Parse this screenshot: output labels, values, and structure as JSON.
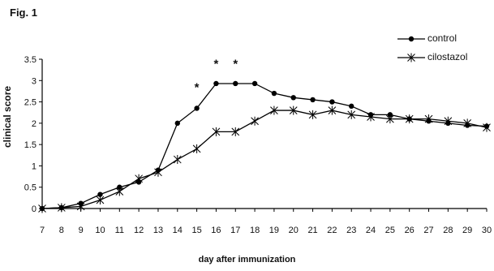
{
  "figure": {
    "label": "Fig. 1"
  },
  "chart_data": {
    "type": "line",
    "title": "",
    "xlabel": "day after immunization",
    "ylabel": "clinical score",
    "x": [
      7,
      8,
      9,
      10,
      11,
      12,
      13,
      14,
      15,
      16,
      17,
      18,
      19,
      20,
      21,
      22,
      23,
      24,
      25,
      26,
      27,
      28,
      29,
      30
    ],
    "ylim": [
      0,
      3.5
    ],
    "yticks": [
      0,
      0.5,
      1,
      1.5,
      2,
      2.5,
      3,
      3.5
    ],
    "ytick_labels": [
      "0",
      "0.5",
      "1",
      "1.5",
      "2",
      "2.5",
      "3",
      "3.5"
    ],
    "xticks": [
      7,
      8,
      9,
      10,
      11,
      12,
      13,
      14,
      15,
      16,
      17,
      18,
      19,
      20,
      21,
      22,
      23,
      24,
      25,
      26,
      27,
      28,
      29,
      30
    ],
    "xtick_labels": [
      "7",
      "8",
      "9",
      "10",
      "11",
      "12",
      "13",
      "14",
      "15",
      "16",
      "17",
      "18",
      "19",
      "20",
      "21",
      "22",
      "23",
      "24",
      "25",
      "26",
      "27",
      "28",
      "29",
      "30"
    ],
    "legend_position": "top-right",
    "grid": false,
    "series": [
      {
        "name": "control",
        "marker": "circle",
        "values": [
          0,
          0.02,
          0.12,
          0.33,
          0.5,
          0.62,
          0.9,
          2.0,
          2.35,
          2.93,
          2.93,
          2.93,
          2.7,
          2.6,
          2.55,
          2.5,
          2.4,
          2.2,
          2.2,
          2.1,
          2.05,
          2.0,
          1.95,
          1.93
        ]
      },
      {
        "name": "cilostazol",
        "marker": "star",
        "values": [
          0,
          0.02,
          0.05,
          0.2,
          0.4,
          0.7,
          0.85,
          1.15,
          1.4,
          1.8,
          1.8,
          2.05,
          2.3,
          2.3,
          2.2,
          2.3,
          2.2,
          2.15,
          2.1,
          2.1,
          2.1,
          2.05,
          2.0,
          1.9
        ]
      }
    ],
    "annotations": [
      {
        "text": "*",
        "x": 15,
        "y": 2.9
      },
      {
        "text": "*",
        "x": 16,
        "y": 3.45
      },
      {
        "text": "*",
        "x": 17,
        "y": 3.45
      }
    ]
  }
}
